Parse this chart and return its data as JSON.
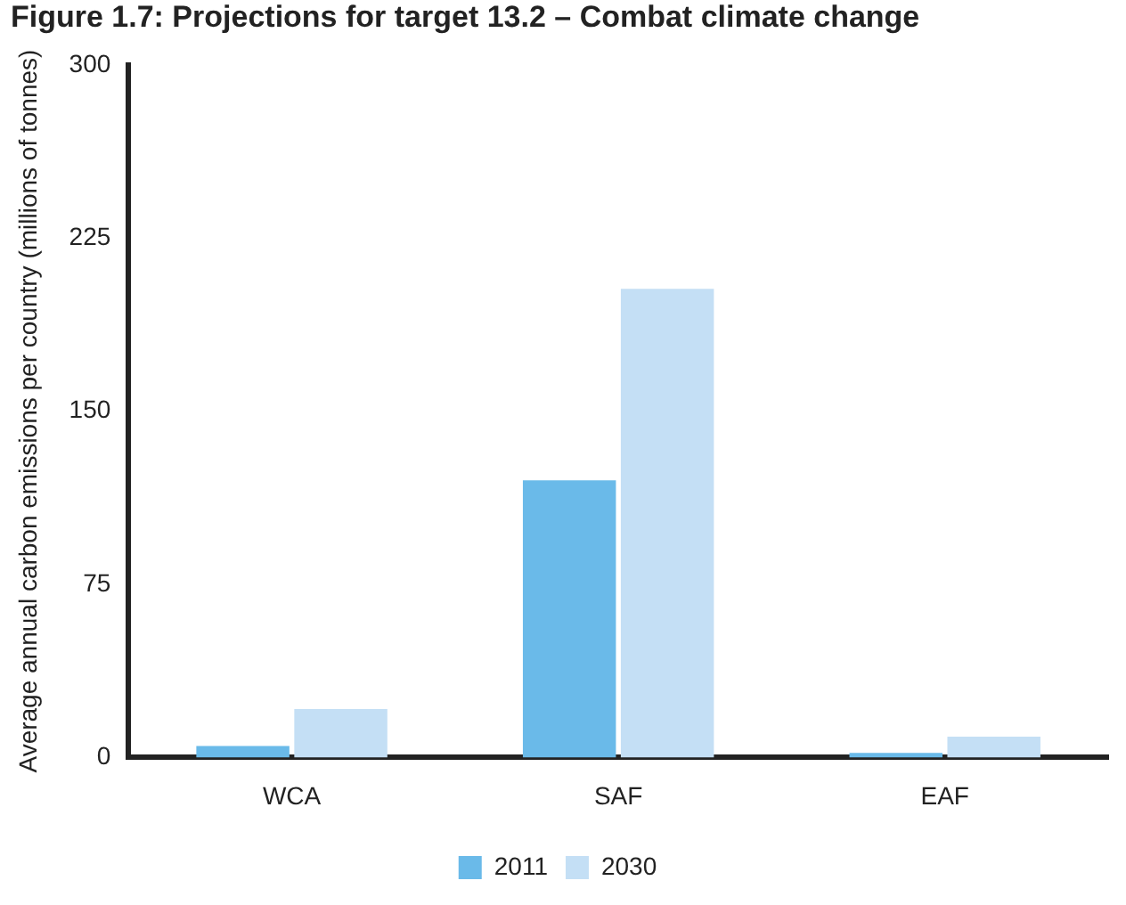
{
  "chart_data": {
    "type": "bar",
    "title": "Figure 1.7: Projections for target 13.2 – Combat climate change",
    "ylabel": "Average annual carbon emissions per country (millions of tonnes)",
    "categories": [
      "WCA",
      "SAF",
      "EAF"
    ],
    "series": [
      {
        "name": "2011",
        "color": "#6abae9",
        "values": [
          5,
          120,
          2
        ]
      },
      {
        "name": "2030",
        "color": "#c4dff5",
        "values": [
          21,
          203,
          9
        ]
      }
    ],
    "ylim": [
      0,
      300
    ],
    "yticks": [
      0,
      75,
      150,
      225,
      300
    ],
    "grid": false,
    "legend": "bottom"
  }
}
